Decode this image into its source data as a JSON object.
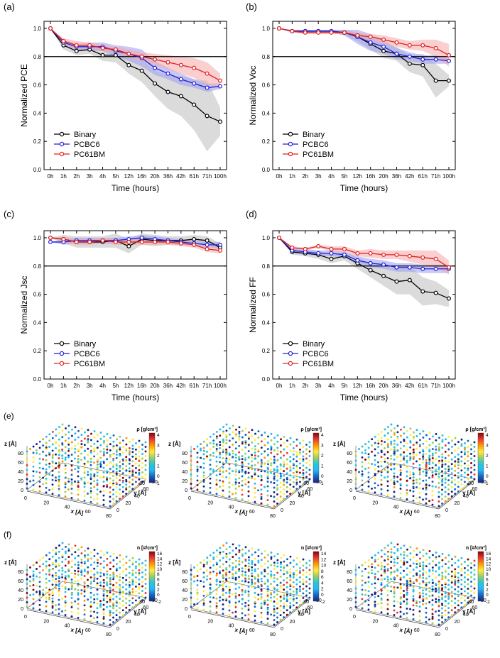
{
  "colors": {
    "binary": "#000000",
    "pcbc6": "#1f1fd6",
    "pc61bm": "#e02020",
    "binary_band": "#bdbdbd",
    "pcbc6_band": "#9a9cf0",
    "pc61bm_band": "#f4a8a8",
    "colormap": [
      "#1a237e",
      "#1565c0",
      "#29b6f6",
      "#26c6da",
      "#9ccc65",
      "#ffeb3b",
      "#ff9800",
      "#e53935",
      "#8b0000"
    ]
  },
  "chart_data": [
    {
      "panel": "(a)",
      "type": "line",
      "categories": [
        "0h",
        "1h",
        "2h",
        "3h",
        "4h",
        "5h",
        "12h",
        "16h",
        "20h",
        "36h",
        "42h",
        "61h",
        "71h",
        "100h"
      ],
      "xlabel": "Time (hours)",
      "ylabel": "Normalized PCE",
      "ylim": [
        0.0,
        1.05
      ],
      "yticks": [
        "0.0",
        "0.2",
        "0.4",
        "0.6",
        "0.8",
        "1.0"
      ],
      "reference_line": 0.8,
      "legend": [
        "Binary",
        "PCBC6",
        "PC61BM"
      ],
      "legend_position": "bottom-left",
      "series": [
        {
          "name": "Binary",
          "values": [
            1.0,
            0.88,
            0.84,
            0.85,
            0.81,
            0.81,
            0.74,
            0.7,
            0.61,
            0.55,
            0.52,
            0.46,
            0.38,
            0.34
          ],
          "band": [
            0.0,
            0.03,
            0.03,
            0.03,
            0.04,
            0.05,
            0.06,
            0.08,
            0.09,
            0.12,
            0.14,
            0.18,
            0.25,
            0.1
          ]
        },
        {
          "name": "PCBC6",
          "values": [
            1.0,
            0.9,
            0.87,
            0.87,
            0.87,
            0.84,
            0.82,
            0.79,
            0.72,
            0.68,
            0.64,
            0.61,
            0.58,
            0.59
          ],
          "band": [
            0.0,
            0.02,
            0.02,
            0.03,
            0.03,
            0.04,
            0.05,
            0.06,
            0.05,
            0.04,
            0.04,
            0.03,
            0.03,
            0.02
          ]
        },
        {
          "name": "PC61BM",
          "values": [
            1.0,
            0.91,
            0.88,
            0.88,
            0.86,
            0.85,
            0.82,
            0.8,
            0.78,
            0.76,
            0.74,
            0.72,
            0.68,
            0.63
          ],
          "band": [
            0.0,
            0.02,
            0.03,
            0.02,
            0.02,
            0.02,
            0.03,
            0.03,
            0.04,
            0.05,
            0.06,
            0.07,
            0.08,
            0.05
          ]
        }
      ]
    },
    {
      "panel": "(b)",
      "type": "line",
      "categories": [
        "0h",
        "1h",
        "2h",
        "3h",
        "4h",
        "5h",
        "12h",
        "16h",
        "20h",
        "36h",
        "42h",
        "61h",
        "71h",
        "100h"
      ],
      "xlabel": "Time (hours)",
      "ylabel": "Normalized Voc",
      "ylim": [
        0.0,
        1.05
      ],
      "yticks": [
        "0.0",
        "0.2",
        "0.4",
        "0.6",
        "0.8",
        "1.0"
      ],
      "reference_line": 0.8,
      "legend": [
        "Binary",
        "PCBC6",
        "PC61BM"
      ],
      "legend_position": "bottom-left",
      "series": [
        {
          "name": "Binary",
          "values": [
            1.0,
            0.98,
            0.98,
            0.98,
            0.98,
            0.97,
            0.94,
            0.89,
            0.84,
            0.82,
            0.75,
            0.74,
            0.63,
            0.63
          ],
          "band": [
            0.0,
            0.01,
            0.01,
            0.01,
            0.01,
            0.02,
            0.03,
            0.04,
            0.05,
            0.05,
            0.06,
            0.08,
            0.12,
            0.04
          ]
        },
        {
          "name": "PCBC6",
          "values": [
            1.0,
            0.98,
            0.98,
            0.98,
            0.98,
            0.97,
            0.94,
            0.9,
            0.87,
            0.82,
            0.8,
            0.78,
            0.78,
            0.77
          ],
          "band": [
            0.0,
            0.01,
            0.01,
            0.01,
            0.01,
            0.02,
            0.05,
            0.06,
            0.05,
            0.04,
            0.03,
            0.03,
            0.03,
            0.02
          ]
        },
        {
          "name": "PC61BM",
          "values": [
            1.0,
            0.98,
            0.97,
            0.97,
            0.97,
            0.97,
            0.95,
            0.94,
            0.92,
            0.9,
            0.88,
            0.88,
            0.86,
            0.81
          ],
          "band": [
            0.0,
            0.01,
            0.01,
            0.01,
            0.01,
            0.01,
            0.02,
            0.02,
            0.03,
            0.03,
            0.03,
            0.04,
            0.06,
            0.08
          ]
        }
      ]
    },
    {
      "panel": "(c)",
      "type": "line",
      "categories": [
        "0h",
        "1h",
        "2h",
        "3h",
        "4h",
        "5h",
        "12h",
        "16h",
        "20h",
        "36h",
        "42h",
        "61h",
        "71h",
        "100h"
      ],
      "xlabel": "Time (hours)",
      "ylabel": "Normalized Jsc",
      "ylim": [
        0.0,
        1.05
      ],
      "yticks": [
        "0.0",
        "0.2",
        "0.4",
        "0.6",
        "0.8",
        "1.0"
      ],
      "reference_line": 0.8,
      "legend": [
        "Binary",
        "PCBC6",
        "PC61BM"
      ],
      "legend_position": "bottom-left",
      "series": [
        {
          "name": "Binary",
          "values": [
            1.0,
            0.99,
            0.97,
            0.97,
            0.97,
            0.98,
            0.94,
            0.99,
            0.98,
            0.98,
            0.98,
            0.99,
            0.98,
            0.93
          ],
          "band": [
            0.0,
            0.03,
            0.04,
            0.04,
            0.04,
            0.05,
            0.05,
            0.04,
            0.04,
            0.03,
            0.03,
            0.03,
            0.03,
            0.03
          ]
        },
        {
          "name": "PCBC6",
          "values": [
            0.97,
            0.97,
            0.98,
            0.98,
            0.98,
            0.98,
            0.99,
            1.0,
            0.99,
            0.98,
            0.97,
            0.96,
            0.95,
            0.95
          ],
          "band": [
            0.0,
            0.02,
            0.02,
            0.02,
            0.02,
            0.02,
            0.02,
            0.02,
            0.02,
            0.02,
            0.02,
            0.02,
            0.02,
            0.02
          ]
        },
        {
          "name": "PC61BM",
          "values": [
            1.0,
            0.99,
            0.97,
            0.97,
            0.98,
            0.97,
            0.97,
            0.97,
            0.97,
            0.97,
            0.96,
            0.95,
            0.92,
            0.91
          ],
          "band": [
            0.0,
            0.02,
            0.02,
            0.02,
            0.02,
            0.02,
            0.02,
            0.02,
            0.02,
            0.02,
            0.02,
            0.02,
            0.02,
            0.02
          ]
        }
      ]
    },
    {
      "panel": "(d)",
      "type": "line",
      "categories": [
        "0h",
        "1h",
        "2h",
        "3h",
        "4h",
        "5h",
        "12h",
        "16h",
        "20h",
        "36h",
        "42h",
        "61h",
        "71h",
        "100h"
      ],
      "xlabel": "Time (hours)",
      "ylabel": "Normalized FF",
      "ylim": [
        0.0,
        1.05
      ],
      "yticks": [
        "0.0",
        "0.2",
        "0.4",
        "0.6",
        "0.8",
        "1.0"
      ],
      "reference_line": 0.8,
      "legend": [
        "Binary",
        "PCBC6",
        "PC61BM"
      ],
      "legend_position": "bottom-left",
      "series": [
        {
          "name": "Binary",
          "values": [
            1.0,
            0.9,
            0.89,
            0.88,
            0.85,
            0.87,
            0.82,
            0.77,
            0.73,
            0.69,
            0.7,
            0.62,
            0.61,
            0.57
          ],
          "band": [
            0.0,
            0.02,
            0.02,
            0.03,
            0.03,
            0.03,
            0.04,
            0.05,
            0.07,
            0.09,
            0.1,
            0.1,
            0.08,
            0.06
          ]
        },
        {
          "name": "PCBC6",
          "values": [
            1.0,
            0.91,
            0.9,
            0.89,
            0.89,
            0.88,
            0.84,
            0.82,
            0.81,
            0.79,
            0.79,
            0.78,
            0.78,
            0.78
          ],
          "band": [
            0.0,
            0.02,
            0.02,
            0.02,
            0.02,
            0.02,
            0.03,
            0.03,
            0.03,
            0.03,
            0.03,
            0.03,
            0.03,
            0.03
          ]
        },
        {
          "name": "PC61BM",
          "values": [
            1.0,
            0.93,
            0.92,
            0.94,
            0.92,
            0.92,
            0.89,
            0.89,
            0.88,
            0.88,
            0.87,
            0.86,
            0.85,
            0.79
          ],
          "band": [
            0.0,
            0.01,
            0.01,
            0.01,
            0.02,
            0.02,
            0.02,
            0.03,
            0.03,
            0.03,
            0.04,
            0.05,
            0.06,
            0.05
          ]
        }
      ]
    }
  ],
  "scatter3d": [
    {
      "panel": "(e)",
      "type": "scatter3d",
      "plots": [
        {
          "colorbar_label": "ρ [g/cm³]",
          "cbar_ticks": [
            "0",
            "1",
            "2",
            "3",
            "4"
          ],
          "cbar_min": "1"
        },
        {
          "colorbar_label": "ρ [g/cm³]",
          "cbar_ticks": [
            "0",
            "1",
            "2",
            "3",
            "4"
          ],
          "cbar_min": "1"
        },
        {
          "colorbar_label": "ρ [g/cm³]",
          "cbar_ticks": [
            "0",
            "1",
            "2",
            "3",
            "4"
          ],
          "cbar_min": "1"
        }
      ],
      "x_label": "x [Å]",
      "y_label": "y [Å]",
      "z_label": "z [Å]",
      "x_ticks": [
        "0",
        "20",
        "40",
        "60",
        "80"
      ],
      "y_ticks": [
        "0",
        "20",
        "40",
        "60",
        "80"
      ],
      "z_ticks": [
        "0",
        "20",
        "40",
        "60",
        "80"
      ]
    },
    {
      "panel": "(f)",
      "type": "scatter3d",
      "plots": [
        {
          "colorbar_label": "n [#/cm³]",
          "cbar_ticks": [
            "0",
            "2",
            "4",
            "6",
            "8",
            "10",
            "12",
            "14",
            "16"
          ],
          "cbar_min": "-2"
        },
        {
          "colorbar_label": "n [#/cm³]",
          "cbar_ticks": [
            "0",
            "2",
            "4",
            "6",
            "8",
            "10",
            "12",
            "14"
          ],
          "cbar_min": "-2"
        },
        {
          "colorbar_label": "n [#/cm³]",
          "cbar_ticks": [
            "0",
            "2",
            "4",
            "6",
            "8",
            "10",
            "12",
            "14",
            "16"
          ],
          "cbar_min": "-2"
        }
      ],
      "x_label": "x [Å]",
      "y_label": "y [Å]",
      "z_label": "z [Å]",
      "x_ticks": [
        "0",
        "20",
        "40",
        "60",
        "80"
      ],
      "y_ticks": [
        "0",
        "20",
        "40",
        "60",
        "80"
      ],
      "z_ticks": [
        "0",
        "20",
        "40",
        "60",
        "80"
      ]
    }
  ]
}
